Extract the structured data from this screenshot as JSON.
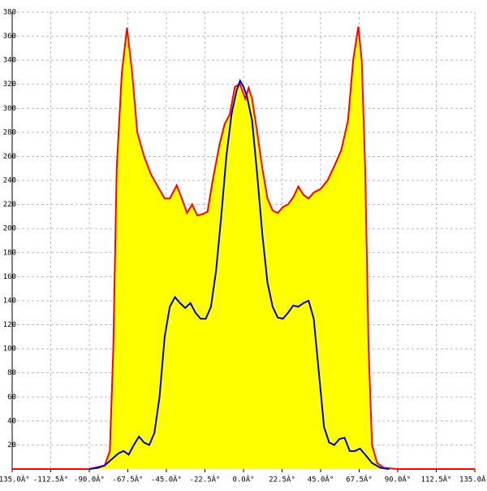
{
  "chart_data": {
    "type": "area",
    "xlim": [
      -135,
      135
    ],
    "ylim": [
      0,
      380
    ],
    "xticks": [
      {
        "value": -135,
        "label": "-135.0Â°"
      },
      {
        "value": -112.5,
        "label": "-112.5Â°"
      },
      {
        "value": -90,
        "label": "-90.0Â°"
      },
      {
        "value": -67.5,
        "label": "-67.5Â°"
      },
      {
        "value": -45,
        "label": "-45.0Â°"
      },
      {
        "value": -22.5,
        "label": "-22.5Â°"
      },
      {
        "value": 0,
        "label": "0.0Â°"
      },
      {
        "value": 22.5,
        "label": "22.5Â°"
      },
      {
        "value": 45,
        "label": "45.0Â°"
      },
      {
        "value": 67.5,
        "label": "67.5Â°"
      },
      {
        "value": 90,
        "label": "90.0Â°"
      },
      {
        "value": 112.5,
        "label": "112.5Â°"
      },
      {
        "value": 135,
        "label": "135.0Â°"
      }
    ],
    "yticks": [
      20,
      40,
      60,
      80,
      100,
      120,
      140,
      160,
      180,
      200,
      220,
      240,
      260,
      280,
      300,
      320,
      340,
      360,
      380
    ],
    "grid": true,
    "series": [
      {
        "color": "#ff0000",
        "fill": "#ffff00",
        "x": [
          -135,
          -90,
          -81,
          -78,
          -76,
          -74,
          -71,
          -68,
          -65,
          -62,
          -58,
          -54,
          -50,
          -46,
          -43,
          -39,
          -36,
          -33,
          -30,
          -27,
          -24,
          -21,
          -18,
          -14,
          -11,
          -8,
          -5,
          -2,
          1,
          3,
          5,
          8,
          11,
          14,
          17,
          20,
          23,
          26,
          29,
          32,
          35,
          38,
          41,
          45,
          49,
          53,
          57,
          61,
          64,
          67,
          69,
          71,
          73,
          75,
          78,
          82,
          90,
          135
        ],
        "values": [
          0,
          0,
          3,
          15,
          100,
          250,
          330,
          367,
          330,
          280,
          260,
          245,
          235,
          225,
          225,
          236,
          225,
          213,
          220,
          211,
          212,
          214,
          240,
          270,
          287,
          295,
          318,
          320,
          308,
          317,
          308,
          280,
          250,
          225,
          215,
          213,
          218,
          220,
          226,
          235,
          228,
          225,
          230,
          233,
          240,
          252,
          265,
          290,
          340,
          368,
          340,
          250,
          100,
          20,
          5,
          1,
          0,
          0
        ]
      },
      {
        "color": "#0000cc",
        "x": [
          -90,
          -85,
          -81,
          -77,
          -73,
          -70,
          -67,
          -64,
          -61,
          -58,
          -55,
          -52,
          -49,
          -46,
          -43,
          -40,
          -37,
          -34,
          -31,
          -28,
          -25,
          -22,
          -19,
          -16,
          -13,
          -10,
          -7,
          -4,
          -2,
          0,
          2,
          5,
          8,
          11,
          14,
          17,
          20,
          23,
          26,
          29,
          32,
          35,
          38,
          41,
          44,
          47,
          50,
          53,
          56,
          59,
          62,
          65,
          68,
          71,
          75,
          80,
          85
        ],
        "values": [
          0,
          1,
          3,
          8,
          13,
          15,
          12,
          20,
          27,
          22,
          20,
          30,
          60,
          110,
          135,
          143,
          138,
          134,
          138,
          130,
          125,
          125,
          135,
          165,
          210,
          260,
          295,
          315,
          323,
          318,
          310,
          290,
          245,
          195,
          155,
          135,
          126,
          125,
          130,
          136,
          135,
          138,
          140,
          125,
          80,
          35,
          22,
          20,
          25,
          26,
          15,
          15,
          17,
          12,
          5,
          1,
          0
        ]
      }
    ]
  }
}
